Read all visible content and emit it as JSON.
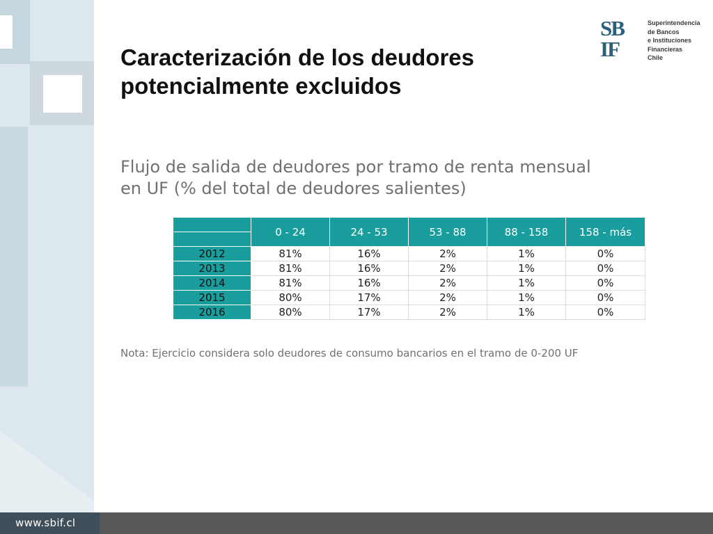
{
  "slide": {
    "title_line1": "Caracterización de los deudores",
    "title_line2": "potencialmente excluidos",
    "subtitle_line1": "Flujo de salida de deudores por tramo de renta mensual",
    "subtitle_line2": "en UF (% del total de deudores salientes)",
    "note": "Nota: Ejercicio considera solo deudores de consumo bancarios en el tramo de 0-200 UF"
  },
  "logo": {
    "mark_top": "SB",
    "mark_bottom": "IF",
    "text_lines": [
      "Superintendencia",
      "de Bancos",
      "e Instituciones",
      "Financieras",
      "Chile"
    ]
  },
  "table": {
    "columns": [
      "0 - 24",
      "24 - 53",
      "53 - 88",
      "88 - 158",
      "158 - más"
    ],
    "rows": [
      {
        "year": "2012",
        "values": [
          "81%",
          "16%",
          "2%",
          "1%",
          "0%"
        ]
      },
      {
        "year": "2013",
        "values": [
          "81%",
          "16%",
          "2%",
          "1%",
          "0%"
        ]
      },
      {
        "year": "2014",
        "values": [
          "81%",
          "16%",
          "2%",
          "1%",
          "0%"
        ]
      },
      {
        "year": "2015",
        "values": [
          "80%",
          "17%",
          "2%",
          "1%",
          "0%"
        ]
      },
      {
        "year": "2016",
        "values": [
          "80%",
          "17%",
          "2%",
          "1%",
          "0%"
        ]
      }
    ]
  },
  "footer": {
    "url": "www.sbif.cl"
  },
  "colors": {
    "accent_teal": "#199d9d",
    "logo_blue": "#2c5f7a",
    "footer_gray": "#575757",
    "footer_dark": "#3e4f5b",
    "deco_light": "#dde8ee"
  }
}
